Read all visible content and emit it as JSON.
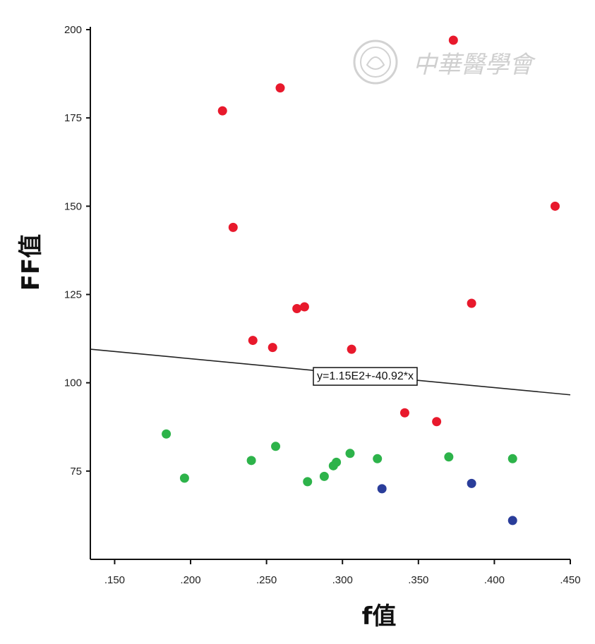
{
  "chart_data": {
    "type": "scatter",
    "xlabel": "f值",
    "ylabel": "FF值",
    "xlim": [
      0.134,
      0.45
    ],
    "ylim": [
      50,
      200
    ],
    "x_ticks": [
      ".150",
      ".200",
      ".250",
      ".300",
      ".350",
      ".400",
      ".450"
    ],
    "x_tick_values": [
      0.15,
      0.2,
      0.25,
      0.3,
      0.35,
      0.4,
      0.45
    ],
    "y_ticks": [
      "75",
      "100",
      "125",
      "150",
      "175",
      "200"
    ],
    "y_tick_values": [
      75,
      100,
      125,
      150,
      175,
      200
    ],
    "fit_line": {
      "label": "y=1.15E2+-40.92*x",
      "intercept": 115,
      "slope": -40.92
    },
    "series": [
      {
        "color": "#e8192c",
        "points": [
          [
            0.221,
            177
          ],
          [
            0.228,
            144
          ],
          [
            0.241,
            112
          ],
          [
            0.254,
            110
          ],
          [
            0.259,
            183.5
          ],
          [
            0.27,
            121
          ],
          [
            0.275,
            121.5
          ],
          [
            0.306,
            109.5
          ],
          [
            0.341,
            91.5
          ],
          [
            0.362,
            89
          ],
          [
            0.373,
            197
          ],
          [
            0.385,
            122.5
          ],
          [
            0.44,
            150
          ]
        ]
      },
      {
        "color": "#2db34a",
        "points": [
          [
            0.184,
            85.5
          ],
          [
            0.196,
            73
          ],
          [
            0.24,
            78
          ],
          [
            0.256,
            82
          ],
          [
            0.277,
            72
          ],
          [
            0.288,
            73.5
          ],
          [
            0.294,
            76.5
          ],
          [
            0.296,
            77.5
          ],
          [
            0.305,
            80
          ],
          [
            0.323,
            78.5
          ],
          [
            0.37,
            79
          ],
          [
            0.412,
            78.5
          ]
        ]
      },
      {
        "color": "#2a3d9a",
        "points": [
          [
            0.326,
            70
          ],
          [
            0.385,
            71.5
          ],
          [
            0.412,
            61
          ]
        ]
      }
    ]
  },
  "watermark": {
    "text": "中華醫學會",
    "color": "#cfcfcf"
  }
}
